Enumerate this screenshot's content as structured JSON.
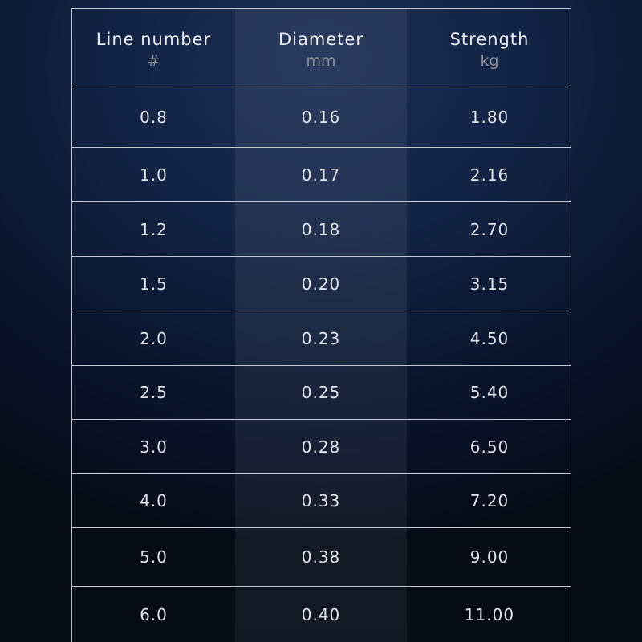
{
  "headers": [
    {
      "title": "Line number",
      "unit": "#"
    },
    {
      "title": "Diameter",
      "unit": "mm"
    },
    {
      "title": "Strength",
      "unit": "kg"
    }
  ],
  "rows": [
    [
      "0.8",
      "0.16",
      "1.80"
    ],
    [
      "1.0",
      "0.17",
      "2.16"
    ],
    [
      "1.2",
      "0.18",
      "2.70"
    ],
    [
      "1.5",
      "0.20",
      "3.15"
    ],
    [
      "2.0",
      "0.23",
      "4.50"
    ],
    [
      "2.5",
      "0.25",
      "5.40"
    ],
    [
      "3.0",
      "0.28",
      "6.50"
    ],
    [
      "4.0",
      "0.33",
      "7.20"
    ],
    [
      "5.0",
      "0.38",
      "9.00"
    ],
    [
      "6.0",
      "0.40",
      "11.00"
    ]
  ]
}
